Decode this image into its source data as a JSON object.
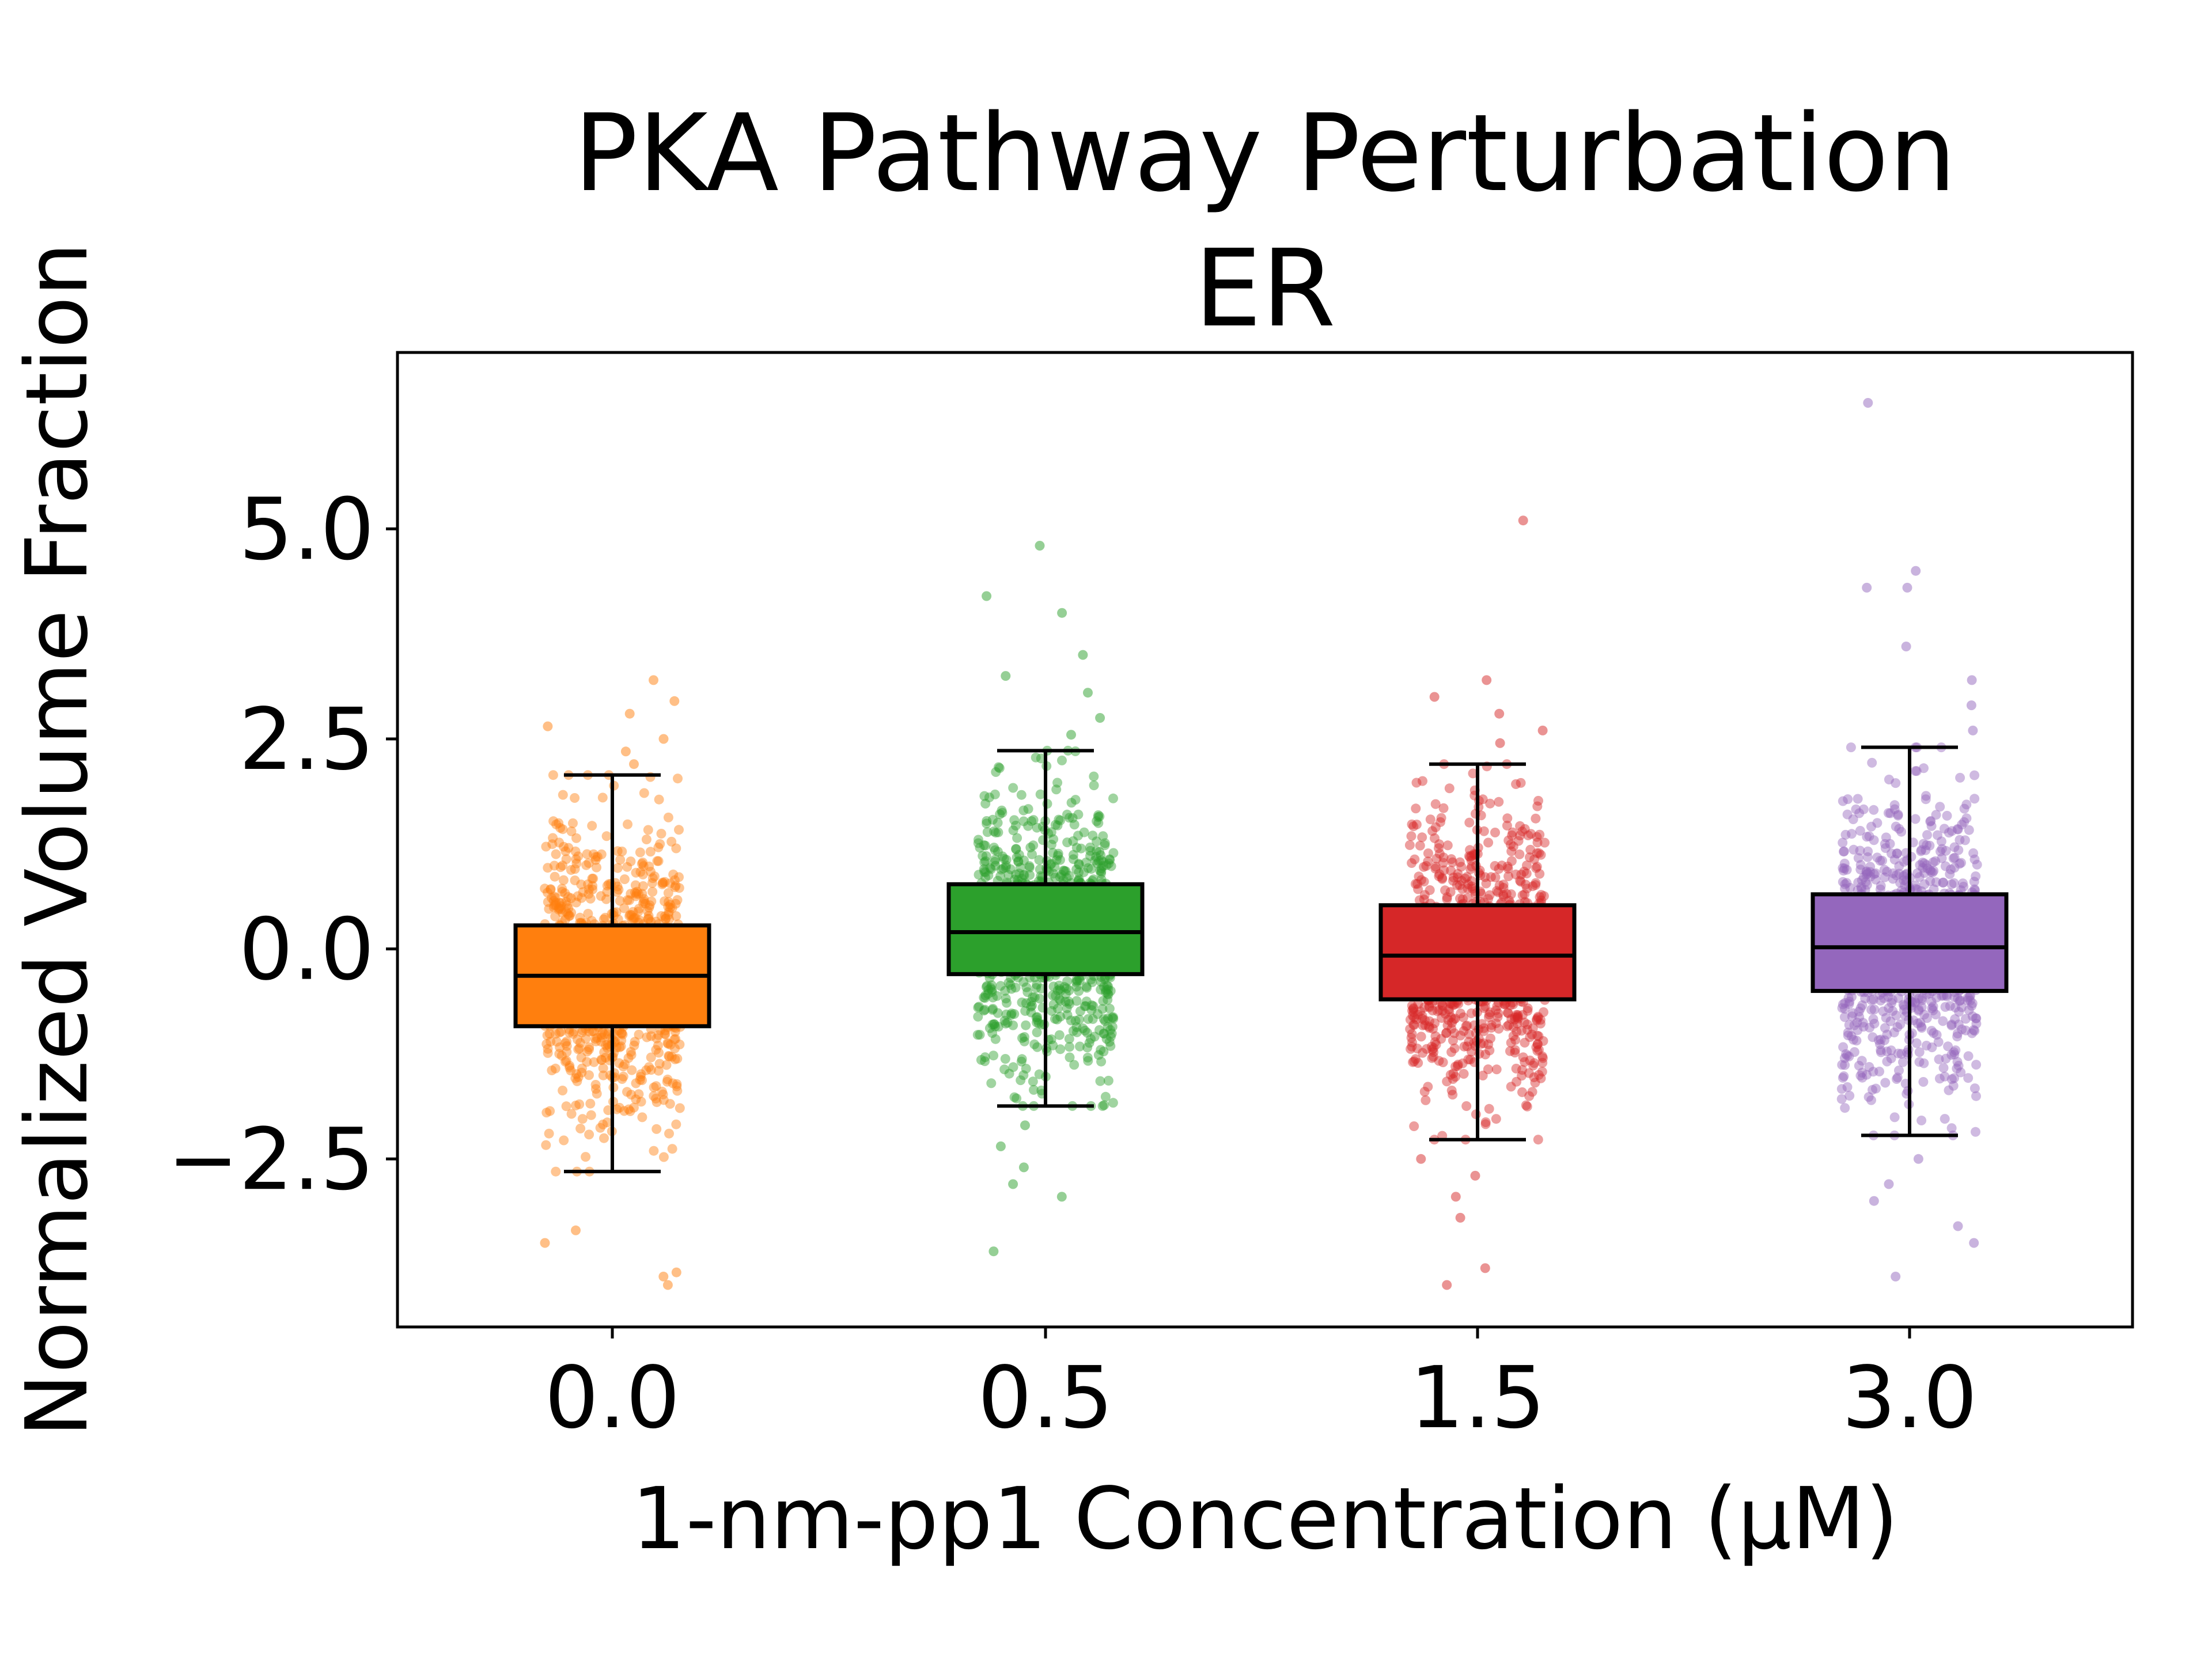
{
  "chart_data": {
    "type": "box",
    "title": "PKA Pathway Perturbation",
    "subtitle": "ER",
    "xlabel": "1-nm-pp1 Concentration (μM)",
    "ylabel": "Normalized Volume Fraction",
    "categories": [
      "0.0",
      "0.5",
      "1.5",
      "3.0"
    ],
    "ylim": [
      -4.5,
      7.1
    ],
    "yticks": [
      -2.5,
      0.0,
      2.5,
      5.0
    ],
    "ytick_labels": [
      "−2.5",
      "0.0",
      "2.5",
      "5.0"
    ],
    "grid": false,
    "legend": "none",
    "overlay": "jittered individual points (strip plot)",
    "series": [
      {
        "category": "0.0",
        "color": "#ff7f0e",
        "whisker_low": -2.65,
        "q1": -0.92,
        "median": -0.32,
        "q3": 0.28,
        "whisker_high": 2.07,
        "outliers": [
          -3.9,
          -4.0,
          -3.85,
          -3.5,
          -3.35,
          2.2,
          2.35,
          2.5,
          2.65,
          2.8,
          2.95,
          3.2
        ]
      },
      {
        "category": "0.5",
        "color": "#2ca02c",
        "whisker_low": -1.87,
        "q1": -0.3,
        "median": 0.2,
        "q3": 0.77,
        "whisker_high": 2.36,
        "outliers": [
          -3.6,
          -2.95,
          -2.8,
          -2.6,
          -2.35,
          -2.1,
          2.55,
          2.75,
          3.05,
          3.25,
          3.5,
          4.0,
          4.2,
          4.8
        ]
      },
      {
        "category": "1.5",
        "color": "#d62728",
        "whisker_low": -2.27,
        "q1": -0.6,
        "median": -0.08,
        "q3": 0.52,
        "whisker_high": 2.2,
        "outliers": [
          -4.0,
          -3.8,
          -3.2,
          -2.95,
          -2.7,
          -2.5,
          2.45,
          2.6,
          2.8,
          3.0,
          3.2,
          5.1
        ]
      },
      {
        "category": "3.0",
        "color": "#9467bd",
        "whisker_low": -2.22,
        "q1": -0.5,
        "median": 0.02,
        "q3": 0.65,
        "whisker_high": 2.4,
        "outliers": [
          -3.9,
          -3.5,
          -3.3,
          -3.0,
          -2.8,
          -2.5,
          2.6,
          2.9,
          3.2,
          3.6,
          4.3,
          4.5,
          4.3,
          6.5
        ]
      }
    ]
  }
}
